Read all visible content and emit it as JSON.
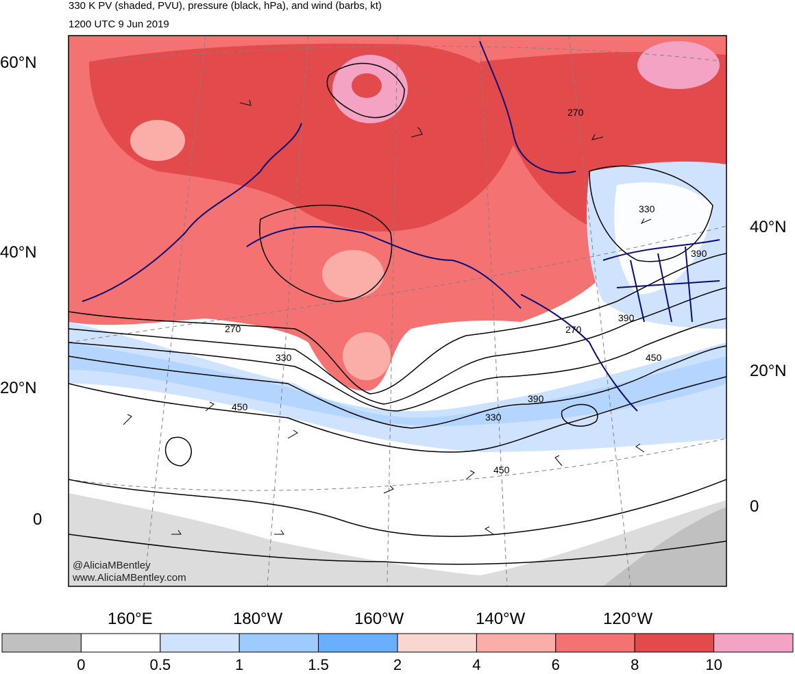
{
  "title": {
    "line1": "330 K PV (shaded, PVU), pressure (black, hPa), and wind (barbs, kt)",
    "line2": "1200 UTC 9 Jun 2019"
  },
  "credit": {
    "line1": "@AliciaMBentley",
    "line2": "www.AliciaMBentley.com"
  },
  "latitude_labels_left": [
    "60°N",
    "40°N",
    "20°N",
    "0"
  ],
  "latitude_labels_right": [
    "40°N",
    "20°N",
    "0"
  ],
  "longitude_labels": [
    "160°E",
    "180°W",
    "160°W",
    "140°W",
    "120°W"
  ],
  "contour_labels": [
    "270",
    "330",
    "450",
    "330",
    "390",
    "450",
    "270",
    "390",
    "450",
    "330",
    "390",
    "270"
  ],
  "colorbar": {
    "labels": [
      "0",
      "0.5",
      "1",
      "1.5",
      "2",
      "4",
      "6",
      "8",
      "10"
    ],
    "colors": [
      "#c0c0c0",
      "#ffffff",
      "#cfe3ff",
      "#9ecbff",
      "#6aaeff",
      "#fad6d0",
      "#fbada8",
      "#f57272",
      "#e34a4c",
      "#f4a3c4"
    ]
  },
  "colors": {
    "pv_high": "#e34a4c",
    "pv_mid": "#f57272",
    "pv_low": "#fbada8",
    "pv_blue": "#9ecbff",
    "coast": "#0a0a78"
  }
}
